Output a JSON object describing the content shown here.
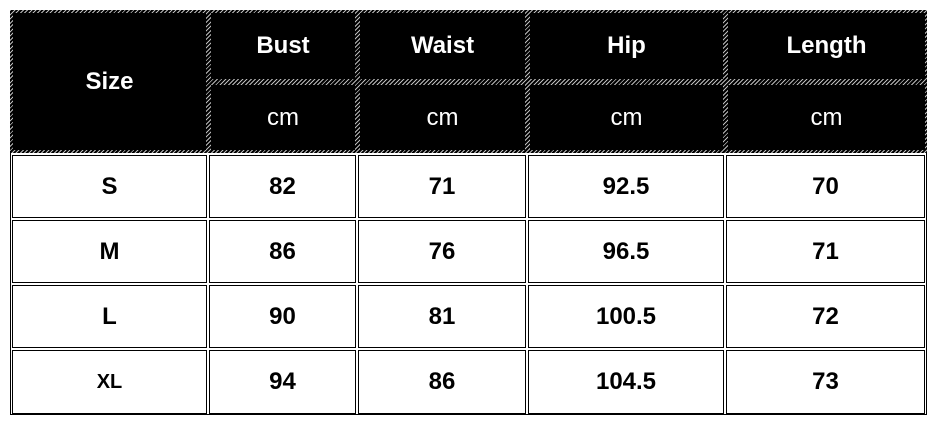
{
  "header": {
    "size_label": "Size",
    "columns": [
      {
        "name": "Bust",
        "unit": "cm"
      },
      {
        "name": "Waist",
        "unit": "cm"
      },
      {
        "name": "Hip",
        "unit": "cm"
      },
      {
        "name": "Length",
        "unit": "cm"
      }
    ]
  },
  "rows": [
    {
      "size": "S",
      "values": [
        "82",
        "71",
        "92.5",
        "70"
      ]
    },
    {
      "size": "M",
      "values": [
        "86",
        "76",
        "96.5",
        "71"
      ]
    },
    {
      "size": "L",
      "values": [
        "90",
        "81",
        "100.5",
        "72"
      ]
    },
    {
      "size": "XL",
      "values": [
        "94",
        "86",
        "104.5",
        "73"
      ]
    }
  ]
}
